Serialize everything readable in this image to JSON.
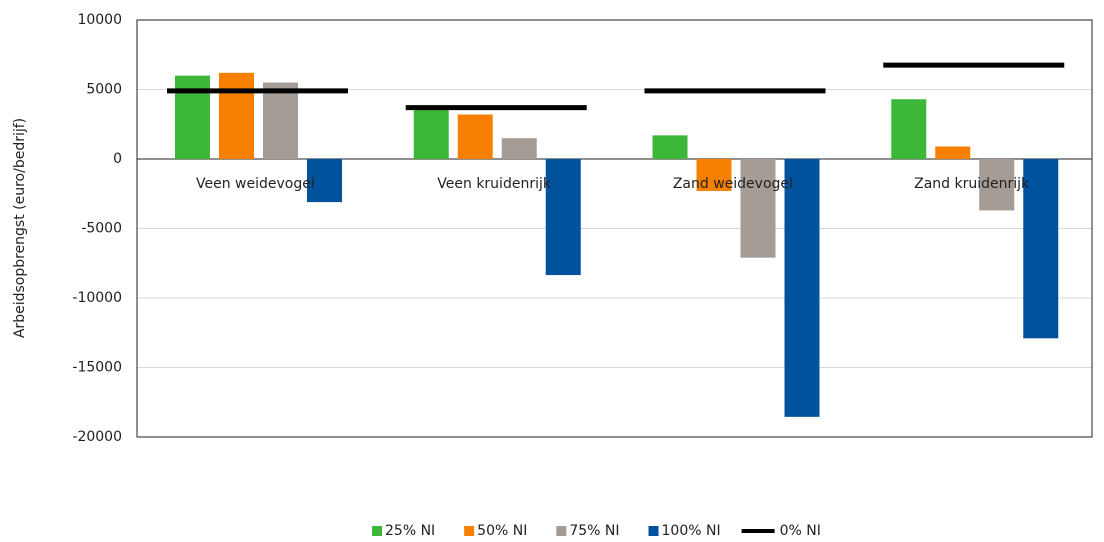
{
  "chart_data": {
    "type": "bar",
    "y_label": "Arbeidsopbrengst (euro/bedrijf)",
    "categories": [
      "Veen weidevogel",
      "Veen kruidenrijk",
      "Zand weidevogel",
      "Zand kruidenrijk"
    ],
    "series": [
      {
        "name": "25% NI",
        "color": "#3cb73a",
        "type": "bar",
        "values": [
          6000,
          3800,
          1700,
          4300
        ]
      },
      {
        "name": "50% NI",
        "color": "#f78000",
        "type": "bar",
        "values": [
          6200,
          3200,
          -2300,
          900
        ]
      },
      {
        "name": "75% NI",
        "color": "#a59d95",
        "type": "bar",
        "values": [
          5500,
          1500,
          -7100,
          -3700
        ]
      },
      {
        "name": "100% NI",
        "color": "#00529c",
        "type": "bar",
        "values": [
          -3100,
          -8350,
          -18550,
          -12900
        ]
      },
      {
        "name": "0% NI",
        "color": "#000000",
        "type": "line",
        "values": [
          4900,
          3700,
          4900,
          6750
        ]
      }
    ],
    "ylim": [
      -20000,
      10000
    ],
    "yticks": [
      -20000,
      -15000,
      -10000,
      -5000,
      0,
      5000,
      10000
    ],
    "grid": true,
    "legend": "bottom"
  }
}
